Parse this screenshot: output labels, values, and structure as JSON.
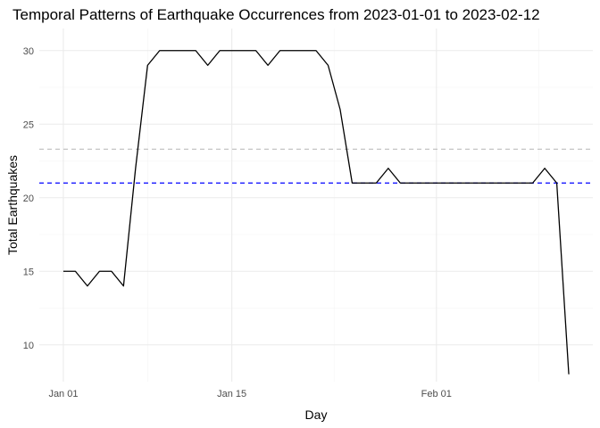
{
  "chart_data": {
    "type": "line",
    "title": "Temporal Patterns of Earthquake Occurrences from 2023-01-01 to 2023-02-12",
    "xlabel": "Day",
    "ylabel": "Total Earthquakes",
    "x_tick_labels": [
      "Jan 01",
      "Jan 15",
      "Feb 01"
    ],
    "x_tick_dates": [
      "2023-01-01",
      "2023-01-15",
      "2023-02-01"
    ],
    "y_tick_labels": [
      "10",
      "15",
      "20",
      "25",
      "30"
    ],
    "y_tick_values": [
      10,
      15,
      20,
      25,
      30
    ],
    "xlim": [
      "2022-12-30",
      "2023-02-14"
    ],
    "ylim": [
      7.5,
      31.5
    ],
    "grid": true,
    "series": [
      {
        "color": "#000000",
        "x": [
          "2023-01-01",
          "2023-01-02",
          "2023-01-03",
          "2023-01-04",
          "2023-01-05",
          "2023-01-06",
          "2023-01-07",
          "2023-01-08",
          "2023-01-09",
          "2023-01-10",
          "2023-01-11",
          "2023-01-12",
          "2023-01-13",
          "2023-01-14",
          "2023-01-15",
          "2023-01-16",
          "2023-01-17",
          "2023-01-18",
          "2023-01-19",
          "2023-01-20",
          "2023-01-21",
          "2023-01-22",
          "2023-01-23",
          "2023-01-24",
          "2023-01-25",
          "2023-01-26",
          "2023-01-27",
          "2023-01-28",
          "2023-01-29",
          "2023-01-30",
          "2023-01-31",
          "2023-02-01",
          "2023-02-02",
          "2023-02-03",
          "2023-02-04",
          "2023-02-05",
          "2023-02-06",
          "2023-02-07",
          "2023-02-08",
          "2023-02-09",
          "2023-02-10",
          "2023-02-11",
          "2023-02-12"
        ],
        "values": [
          15,
          15,
          14,
          15,
          15,
          14,
          22,
          29,
          30,
          30,
          30,
          30,
          29,
          30,
          30,
          30,
          30,
          29,
          30,
          30,
          30,
          30,
          29,
          26,
          21,
          21,
          21,
          22,
          21,
          21,
          21,
          21,
          21,
          21,
          21,
          21,
          21,
          21,
          21,
          21,
          22,
          21,
          8
        ]
      }
    ],
    "reference_lines": [
      {
        "value": 21,
        "color": "#0000ff",
        "style": "dashed"
      },
      {
        "value": 23.3,
        "color": "#bebebe",
        "style": "dashed"
      }
    ]
  }
}
